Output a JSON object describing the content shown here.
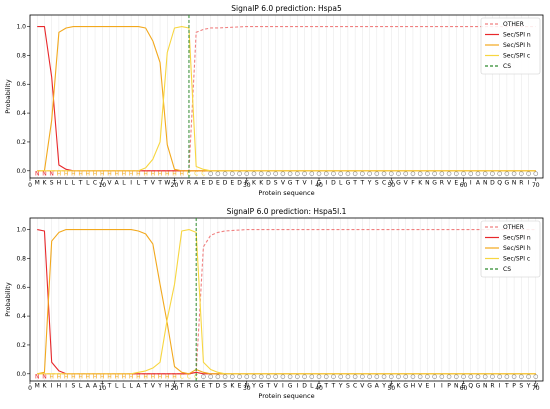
{
  "chart_data": [
    {
      "type": "line",
      "title": "SignalP 6.0 prediction: Hspa5",
      "xlabel": "Protein sequence",
      "ylabel": "Probability",
      "xlim": [
        0,
        71
      ],
      "ylim": [
        -0.05,
        1.08
      ],
      "xticks": [
        0,
        10,
        20,
        30,
        40,
        50,
        60,
        70
      ],
      "yticks": [
        0.0,
        0.2,
        0.4,
        0.6,
        0.8,
        1.0
      ],
      "legend_position": "top-right",
      "grid": "vertical lines at each residue",
      "colors": {
        "OTHER": "#f08080",
        "n": "#e8282b",
        "h": "#f2a81d",
        "c": "#f7d640",
        "CS": "#2e8b2e"
      },
      "sequence": "MKSHLLTLCLVALILTVTWTVRAEDEDEDKKKDSVGTVIGIDLGTTYSCVGVFKNGRVEIIANDQGNRI",
      "region_labels": "NNNHHHHHHHHHHHHHHHHHHCCCOOOOOOOOOOOOOOOOOOOOOOOOOOOOOOOOOOOOOOOOOOOOOOO",
      "cs_position": 22,
      "series": [
        {
          "name": "OTHER",
          "style": "dashed",
          "x": [
            1,
            2,
            3,
            4,
            5,
            6,
            7,
            8,
            9,
            10,
            11,
            12,
            13,
            14,
            15,
            16,
            17,
            18,
            19,
            20,
            21,
            22,
            23,
            24,
            25,
            26,
            30,
            40,
            50,
            60,
            70
          ],
          "values": [
            0,
            0,
            0,
            0,
            0,
            0,
            0,
            0,
            0,
            0,
            0,
            0,
            0,
            0,
            0,
            0,
            0,
            0,
            0,
            0,
            0,
            0.0,
            0.96,
            0.98,
            0.99,
            0.99,
            1,
            1,
            1,
            1,
            1
          ]
        },
        {
          "name": "Sec/SPI n",
          "style": "solid",
          "x": [
            1,
            2,
            3,
            4,
            5,
            6,
            7,
            70
          ],
          "values": [
            1.0,
            1.0,
            0.65,
            0.04,
            0.01,
            0,
            0,
            0
          ]
        },
        {
          "name": "Sec/SPI h",
          "style": "solid",
          "x": [
            1,
            2,
            3,
            4,
            5,
            6,
            7,
            8,
            9,
            10,
            11,
            12,
            13,
            14,
            15,
            16,
            17,
            18,
            19,
            20,
            21,
            22,
            23,
            24,
            70
          ],
          "values": [
            0,
            0,
            0.35,
            0.96,
            0.99,
            1,
            1,
            1,
            1,
            1,
            1,
            1,
            1,
            1,
            1,
            0.99,
            0.9,
            0.75,
            0.18,
            0.01,
            0,
            0,
            0,
            0,
            0
          ]
        },
        {
          "name": "Sec/SPI c",
          "style": "solid",
          "x": [
            1,
            2,
            15,
            16,
            17,
            18,
            19,
            20,
            21,
            22,
            23,
            24,
            25,
            70
          ],
          "values": [
            0,
            0,
            0,
            0.02,
            0.08,
            0.2,
            0.82,
            0.99,
            1.0,
            0.99,
            0.03,
            0.01,
            0,
            0
          ]
        }
      ]
    },
    {
      "type": "line",
      "title": "SignalP 6.0 prediction: Hspa5l.1",
      "xlabel": "Protein sequence",
      "ylabel": "Probability",
      "xlim": [
        0,
        71
      ],
      "ylim": [
        -0.05,
        1.08
      ],
      "xticks": [
        0,
        10,
        20,
        30,
        40,
        50,
        60,
        70
      ],
      "yticks": [
        0.0,
        0.2,
        0.4,
        0.6,
        0.8,
        1.0
      ],
      "legend_position": "top-right",
      "grid": "vertical lines at each residue",
      "colors": {
        "OTHER": "#f08080",
        "n": "#e8282b",
        "h": "#f2a81d",
        "c": "#f7d640",
        "CS": "#2e8b2e"
      },
      "sequence": "MKIHISLAATTLLLATVYHVTRGETDSKENYGTVIGIDLGTTYSCVGAYKKGHVEIIPNEQGNRITPSYV",
      "region_labels": "NNHHHHHHHHHHHHHHHHHHCCCOOOOOOOOOOOOOOOOOOOOOOOOOOOOOOOOOOOOOOOOOOOOOOOO",
      "cs_position": 23,
      "series": [
        {
          "name": "OTHER",
          "style": "dashed",
          "x": [
            1,
            2,
            3,
            20,
            21,
            22,
            23,
            24,
            25,
            26,
            27,
            30,
            40,
            50,
            60,
            70
          ],
          "values": [
            0,
            0,
            0,
            0,
            0,
            0,
            0.01,
            0.88,
            0.96,
            0.98,
            0.99,
            1,
            1,
            1,
            1,
            1
          ]
        },
        {
          "name": "Sec/SPI n",
          "style": "solid",
          "x": [
            1,
            2,
            3,
            4,
            5,
            6,
            22,
            23,
            24,
            70
          ],
          "values": [
            1.0,
            0.99,
            0.08,
            0.02,
            0.0,
            0,
            0,
            0.01,
            0,
            0
          ]
        },
        {
          "name": "Sec/SPI h",
          "style": "solid",
          "x": [
            1,
            2,
            3,
            4,
            5,
            6,
            7,
            8,
            9,
            10,
            11,
            12,
            13,
            14,
            15,
            16,
            17,
            18,
            19,
            20,
            21,
            22,
            23,
            24,
            25,
            26,
            70
          ],
          "values": [
            0,
            0.01,
            0.92,
            0.98,
            1,
            1,
            1,
            1,
            1,
            1,
            1,
            1,
            1,
            1,
            0.99,
            0.97,
            0.9,
            0.62,
            0.35,
            0.05,
            0.01,
            0.0,
            0.03,
            0.01,
            0,
            0,
            0
          ]
        },
        {
          "name": "Sec/SPI c",
          "style": "solid",
          "x": [
            1,
            14,
            15,
            16,
            17,
            18,
            19,
            20,
            21,
            22,
            23,
            24,
            25,
            26,
            27,
            70
          ],
          "values": [
            0,
            0,
            0.01,
            0.02,
            0.04,
            0.08,
            0.38,
            0.62,
            0.99,
            1.0,
            0.98,
            0.08,
            0.03,
            0.01,
            0,
            0
          ]
        }
      ]
    }
  ]
}
